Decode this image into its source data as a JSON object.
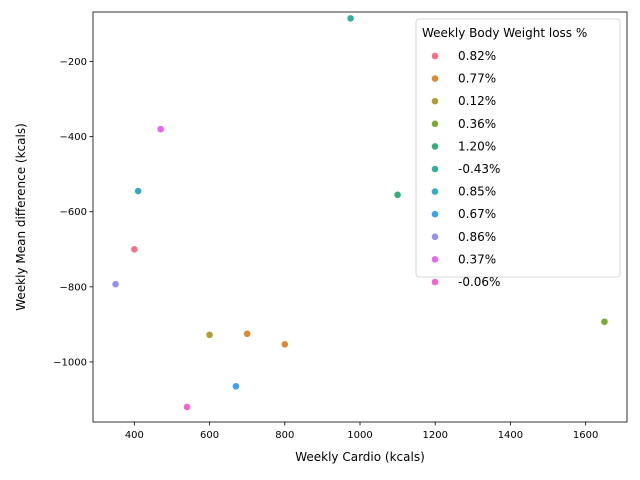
{
  "chart_data": {
    "type": "scatter",
    "xlabel": "Weekly Cardio (kcals)",
    "ylabel": "Weekly Mean difference (kcals)",
    "xlim": [
      290,
      1710
    ],
    "ylim": [
      -1160,
      -68
    ],
    "xticks": [
      400,
      600,
      800,
      1000,
      1200,
      1400,
      1600
    ],
    "yticks": [
      -1000,
      -800,
      -600,
      -400,
      -200
    ],
    "xtick_labels": [
      "400",
      "600",
      "800",
      "1000",
      "1200",
      "1400",
      "1600"
    ],
    "ytick_labels": [
      "−1000",
      "−800",
      "−600",
      "−400",
      "−200"
    ],
    "legend": {
      "title": "Weekly Body Weight loss %",
      "placement": "upper right"
    },
    "series": [
      {
        "name": "0.82%",
        "color": "#f77189",
        "x": [
          400
        ],
        "y": [
          -700
        ]
      },
      {
        "name": "0.77%",
        "color": "#dc8932",
        "x": [
          700,
          800
        ],
        "y": [
          -925,
          -953
        ]
      },
      {
        "name": "0.12%",
        "color": "#ae9d31",
        "x": [
          600
        ],
        "y": [
          -928
        ]
      },
      {
        "name": "0.36%",
        "color": "#77ab31",
        "x": [
          1650
        ],
        "y": [
          -893
        ]
      },
      {
        "name": "1.20%",
        "color": "#33b07a",
        "x": [
          1100
        ],
        "y": [
          -555
        ]
      },
      {
        "name": "-0.43%",
        "color": "#36ada4",
        "x": [
          975
        ],
        "y": [
          -85
        ]
      },
      {
        "name": "0.85%",
        "color": "#38a9c5",
        "x": [
          410
        ],
        "y": [
          -545
        ]
      },
      {
        "name": "0.67%",
        "color": "#3ba3ec",
        "x": [
          670
        ],
        "y": [
          -1065
        ]
      },
      {
        "name": "0.86%",
        "color": "#9491f4",
        "x": [
          350
        ],
        "y": [
          -793
        ]
      },
      {
        "name": "0.37%",
        "color": "#e866f4",
        "x": [
          470
        ],
        "y": [
          -380
        ]
      },
      {
        "name": "-0.06%",
        "color": "#f563d3",
        "x": [
          540
        ],
        "y": [
          -1120
        ]
      }
    ]
  }
}
